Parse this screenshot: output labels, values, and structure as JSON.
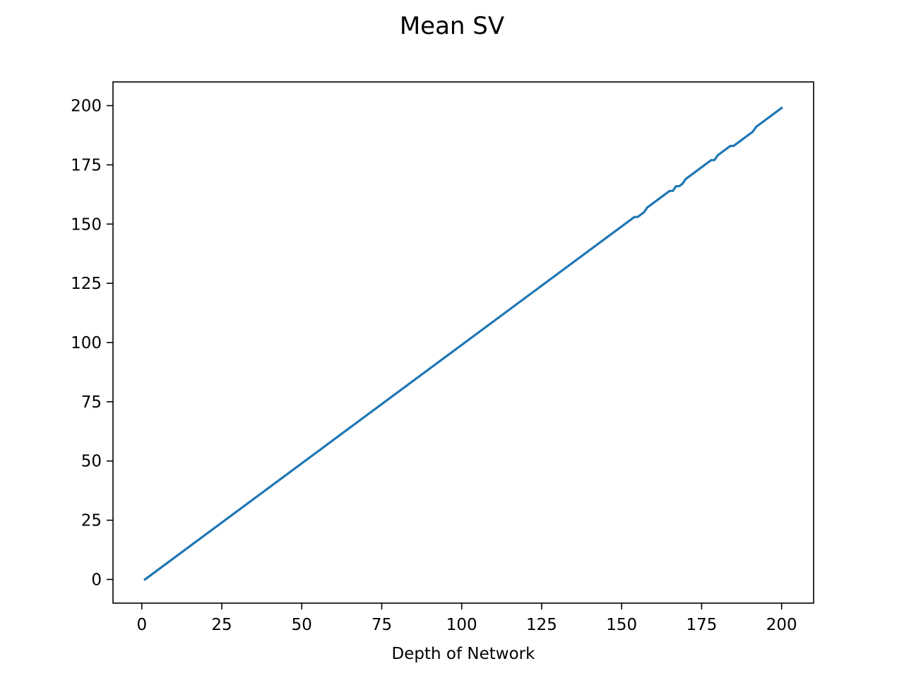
{
  "chart_data": {
    "type": "line",
    "title": "Mean SV",
    "xlabel": "Depth of Network",
    "ylabel": "",
    "xlim": [
      -9,
      210
    ],
    "ylim": [
      -10,
      210
    ],
    "xticks": [
      0,
      25,
      50,
      75,
      100,
      125,
      150,
      175,
      200
    ],
    "yticks": [
      0,
      25,
      50,
      75,
      100,
      125,
      150,
      175,
      200
    ],
    "xtick_labels": [
      "0",
      "25",
      "50",
      "75",
      "100",
      "125",
      "150",
      "175",
      "200"
    ],
    "ytick_labels": [
      "0",
      "25",
      "50",
      "75",
      "100",
      "125",
      "150",
      "175",
      "200"
    ],
    "grid": false,
    "legend": "none",
    "series": [
      {
        "color": "#1f77b4",
        "x": [
          1,
          154,
          155,
          157,
          158,
          165,
          166,
          167,
          168,
          169,
          170,
          178,
          179,
          180,
          184,
          185,
          191,
          192,
          200
        ],
        "y": [
          0,
          153,
          153,
          155,
          157,
          164,
          164,
          166,
          166,
          167,
          169,
          177,
          177,
          179,
          183,
          183,
          189,
          191,
          199
        ]
      }
    ]
  }
}
